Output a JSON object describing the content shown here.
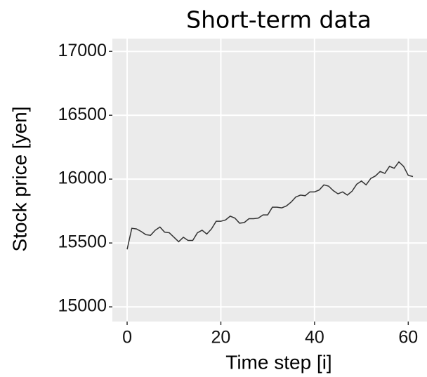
{
  "chart_data": {
    "type": "line",
    "title": "Short-term data",
    "x_label": "Time step [i]",
    "y_label": "Stock price [yen]",
    "x": [
      0,
      1,
      2,
      3,
      4,
      5,
      6,
      7,
      8,
      9,
      10,
      11,
      12,
      13,
      14,
      15,
      16,
      17,
      18,
      19,
      20,
      21,
      22,
      23,
      24,
      25,
      26,
      27,
      28,
      29,
      30,
      31,
      32,
      33,
      34,
      35,
      36,
      37,
      38,
      39,
      40,
      41,
      42,
      43,
      44,
      45,
      46,
      47,
      48,
      49,
      50,
      51,
      52,
      53,
      54,
      55,
      56,
      57,
      58,
      59,
      60,
      61
    ],
    "series": [
      {
        "name": "Stock price",
        "color": "#333333",
        "values": [
          15450,
          15615,
          15610,
          15590,
          15565,
          15560,
          15600,
          15625,
          15585,
          15580,
          15545,
          15510,
          15545,
          15520,
          15520,
          15580,
          15600,
          15570,
          15610,
          15670,
          15670,
          15680,
          15710,
          15695,
          15655,
          15660,
          15690,
          15690,
          15695,
          15720,
          15720,
          15780,
          15780,
          15775,
          15790,
          15820,
          15860,
          15875,
          15870,
          15900,
          15900,
          15915,
          15955,
          15945,
          15910,
          15885,
          15900,
          15875,
          15905,
          15960,
          15985,
          15955,
          16005,
          16025,
          16060,
          16045,
          16100,
          16085,
          16135,
          16100,
          16030,
          16020
        ]
      }
    ],
    "xlim": [
      -3.15,
      64
    ],
    "ylim": [
      14885,
      17100
    ],
    "xticks": [
      0,
      20,
      40,
      60
    ],
    "yticks": [
      15000,
      15500,
      16000,
      16500,
      17000
    ],
    "grid": true
  }
}
